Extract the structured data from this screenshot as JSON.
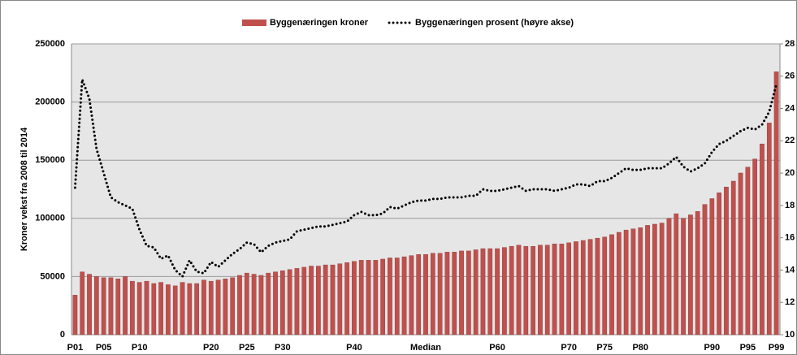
{
  "chart_data": {
    "type": "bar_line",
    "y_axis_label": "Kroner vekst fra 2008 til 2014",
    "categories": [
      "P01",
      null,
      null,
      null,
      "P05",
      null,
      null,
      null,
      null,
      "P10",
      null,
      null,
      null,
      null,
      null,
      null,
      null,
      null,
      null,
      "P20",
      null,
      null,
      null,
      null,
      "P25",
      null,
      null,
      null,
      null,
      "P30",
      null,
      null,
      null,
      null,
      null,
      null,
      null,
      null,
      null,
      "P40",
      null,
      null,
      null,
      null,
      null,
      null,
      null,
      null,
      null,
      "Median",
      null,
      null,
      null,
      null,
      null,
      null,
      null,
      null,
      null,
      "P60",
      null,
      null,
      null,
      null,
      null,
      null,
      null,
      null,
      null,
      "P70",
      null,
      null,
      null,
      null,
      "P75",
      null,
      null,
      null,
      null,
      "P80",
      null,
      null,
      null,
      null,
      null,
      null,
      null,
      null,
      null,
      "P90",
      null,
      null,
      null,
      null,
      "P95",
      null,
      null,
      null,
      "P99"
    ],
    "series": [
      {
        "name": "Byggenæringen kroner",
        "type": "bar",
        "color": "#c0504d",
        "values": [
          34000,
          54000,
          52000,
          50000,
          49000,
          49000,
          48000,
          50000,
          46000,
          45000,
          46000,
          44000,
          45000,
          43000,
          42000,
          45000,
          44000,
          44000,
          47000,
          46000,
          47000,
          48000,
          49000,
          51000,
          53000,
          52000,
          51000,
          53000,
          54000,
          55000,
          56000,
          57000,
          58000,
          59000,
          59000,
          60000,
          60000,
          61000,
          62000,
          63000,
          64000,
          64000,
          64000,
          65000,
          66000,
          66000,
          67000,
          68000,
          69000,
          69000,
          70000,
          70000,
          71000,
          71000,
          72000,
          72000,
          73000,
          74000,
          74000,
          74000,
          75000,
          76000,
          77000,
          76000,
          76000,
          77000,
          77000,
          78000,
          78000,
          79000,
          80000,
          81000,
          82000,
          83000,
          84000,
          86000,
          88000,
          90000,
          91000,
          92000,
          94000,
          95000,
          96000,
          100000,
          104000,
          100000,
          103000,
          106000,
          112000,
          117000,
          122000,
          127000,
          132000,
          139000,
          144000,
          151000,
          164000,
          182000,
          226000
        ]
      },
      {
        "name": "Byggenæringen prosent (høyre akse)",
        "type": "line",
        "axis": "y2",
        "color": "#000000",
        "values": [
          19.1,
          25.8,
          24.6,
          21.5,
          20.0,
          18.5,
          18.2,
          18.0,
          17.8,
          16.5,
          15.5,
          15.4,
          14.7,
          14.9,
          14.0,
          13.6,
          14.6,
          13.9,
          13.8,
          14.5,
          14.2,
          14.6,
          15.0,
          15.3,
          15.7,
          15.6,
          15.1,
          15.5,
          15.7,
          15.8,
          15.9,
          16.4,
          16.5,
          16.6,
          16.7,
          16.7,
          16.8,
          16.9,
          17.0,
          17.4,
          17.6,
          17.4,
          17.4,
          17.5,
          17.9,
          17.8,
          18.0,
          18.2,
          18.3,
          18.3,
          18.4,
          18.4,
          18.5,
          18.5,
          18.5,
          18.6,
          18.6,
          19.0,
          18.9,
          18.9,
          19.0,
          19.1,
          19.2,
          18.9,
          19.0,
          19.0,
          19.0,
          18.9,
          19.0,
          19.1,
          19.3,
          19.3,
          19.2,
          19.5,
          19.5,
          19.7,
          20.0,
          20.3,
          20.2,
          20.2,
          20.3,
          20.3,
          20.3,
          20.6,
          21.0,
          20.4,
          20.1,
          20.3,
          20.6,
          21.3,
          21.8,
          22.0,
          22.3,
          22.6,
          22.8,
          22.7,
          23.0,
          23.8,
          25.5
        ]
      }
    ],
    "ylim": [
      0,
      250000
    ],
    "yticks": [
      0,
      50000,
      100000,
      150000,
      200000,
      250000
    ],
    "y2lim": [
      10,
      28
    ],
    "y2ticks": [
      10,
      12,
      14,
      16,
      18,
      20,
      22,
      24,
      26,
      28
    ],
    "grid": true,
    "legend": "top"
  }
}
